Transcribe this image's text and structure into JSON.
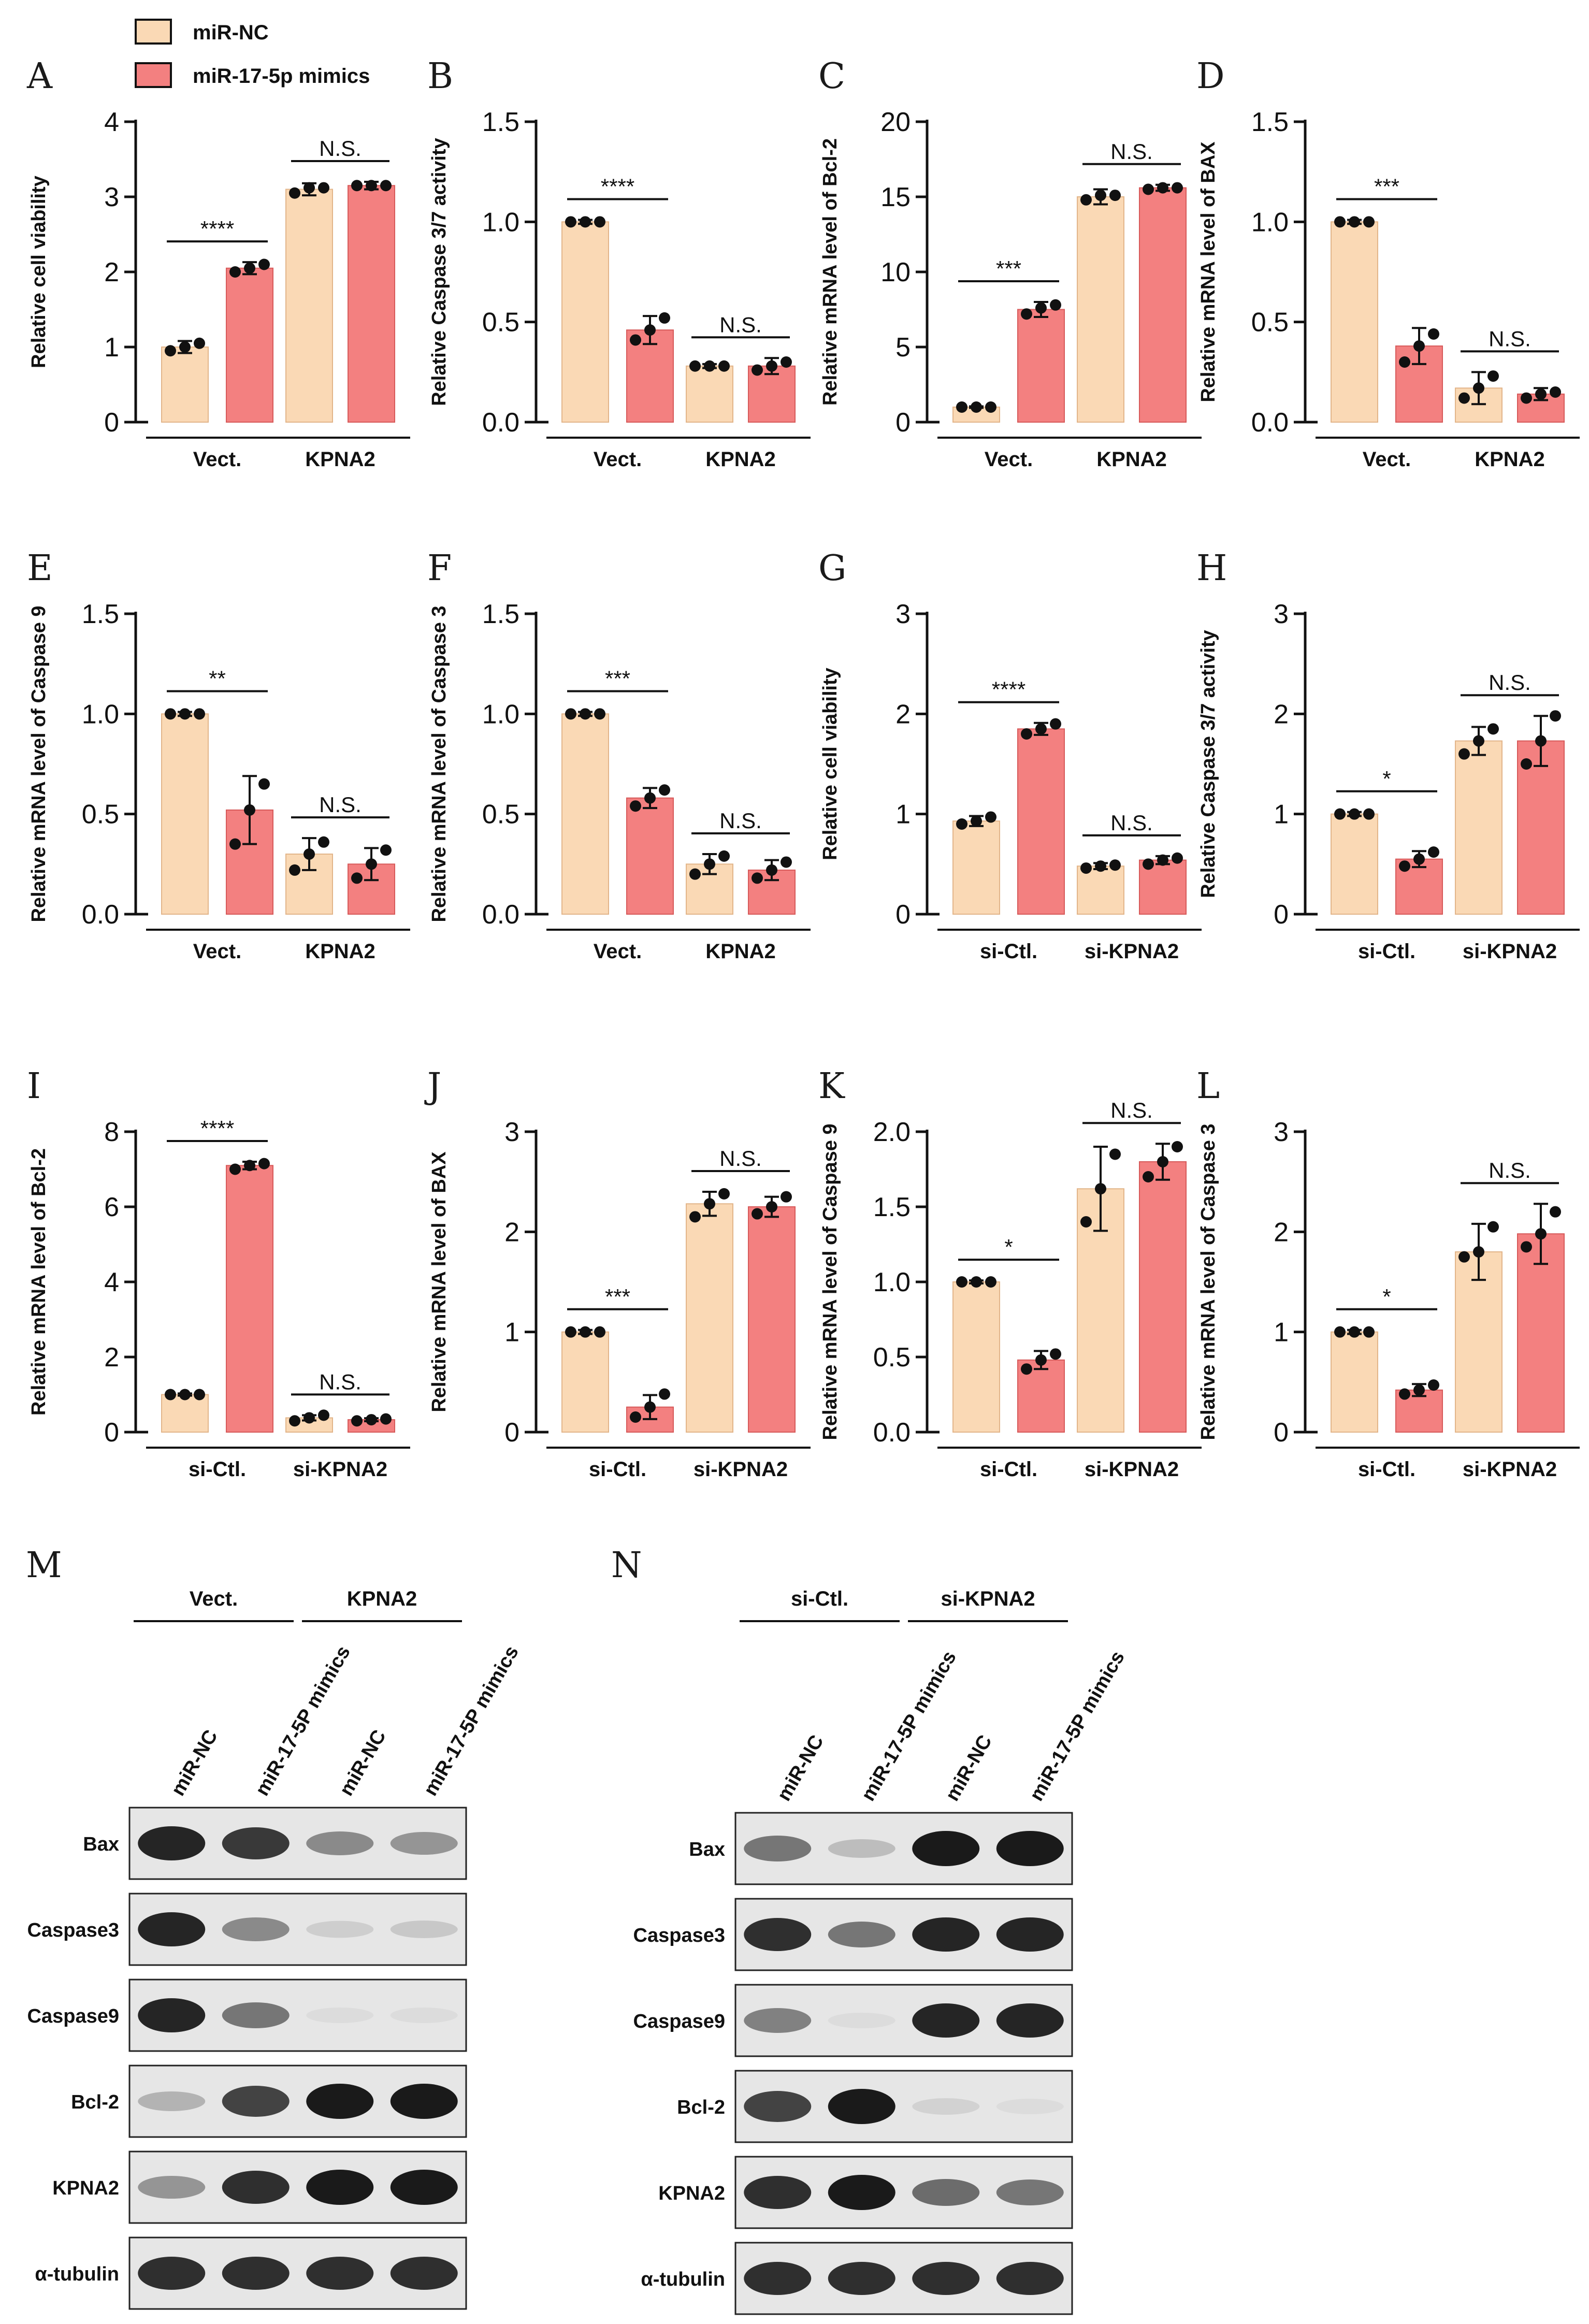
{
  "legend": [
    {
      "label": "miR-NC",
      "color": "#fad9b5"
    },
    {
      "label": "miR-17-5p mimics",
      "color": "#f38080"
    }
  ],
  "colors": {
    "nc": "#fad9b5",
    "nc_stroke": "#e2b58a",
    "mim": "#f38080",
    "mim_stroke": "#d75a5a",
    "axis": "#111111",
    "blot_bg": "#e6e6e6"
  },
  "chart_data": [
    {
      "id": "A",
      "type": "bar",
      "ylabel": "Relative cell viability",
      "ylim": [
        0,
        4
      ],
      "yticks": [
        "0",
        "1",
        "2",
        "3",
        "4"
      ],
      "groups": [
        "Vect.",
        "KPNA2"
      ],
      "series": [
        {
          "name": "miR-NC",
          "values": [
            1.0,
            3.1
          ],
          "points": [
            [
              0.95,
              1.0,
              1.05
            ],
            [
              3.05,
              3.12,
              3.12
            ]
          ],
          "sd": [
            0.08,
            0.08
          ]
        },
        {
          "name": "miR-17-5p mimics",
          "values": [
            2.05,
            3.15
          ],
          "points": [
            [
              2.0,
              2.05,
              2.1
            ],
            [
              3.15,
              3.15,
              3.15
            ]
          ],
          "sd": [
            0.08,
            0.05
          ]
        }
      ],
      "sig": [
        "****",
        "N.S."
      ]
    },
    {
      "id": "B",
      "type": "bar",
      "ylabel": "Relative Caspase 3/7 activity",
      "ylim": [
        0,
        1.5
      ],
      "yticks": [
        "0.0",
        "0.5",
        "1.0",
        "1.5"
      ],
      "groups": [
        "Vect.",
        "KPNA2"
      ],
      "series": [
        {
          "name": "miR-NC",
          "values": [
            1.0,
            0.28
          ],
          "points": [
            [
              1.0,
              1.0,
              1.0
            ],
            [
              0.28,
              0.28,
              0.28
            ]
          ],
          "sd": [
            0.01,
            0.01
          ]
        },
        {
          "name": "miR-17-5p mimics",
          "values": [
            0.46,
            0.28
          ],
          "points": [
            [
              0.41,
              0.46,
              0.52
            ],
            [
              0.26,
              0.28,
              0.3
            ]
          ],
          "sd": [
            0.07,
            0.04
          ]
        }
      ],
      "sig": [
        "****",
        "N.S."
      ]
    },
    {
      "id": "C",
      "type": "bar",
      "ylabel": "Relative mRNA level of Bcl-2",
      "ylim": [
        0,
        20
      ],
      "yticks": [
        "0",
        "5",
        "10",
        "15",
        "20"
      ],
      "groups": [
        "Vect.",
        "KPNA2"
      ],
      "series": [
        {
          "name": "miR-NC",
          "values": [
            1.0,
            15.0
          ],
          "points": [
            [
              1.0,
              1.0,
              1.0
            ],
            [
              14.8,
              15.1,
              15.1
            ]
          ],
          "sd": [
            0.05,
            0.5
          ]
        },
        {
          "name": "miR-17-5p mimics",
          "values": [
            7.5,
            15.6
          ],
          "points": [
            [
              7.2,
              7.6,
              7.8
            ],
            [
              15.5,
              15.6,
              15.6
            ]
          ],
          "sd": [
            0.5,
            0.2
          ]
        }
      ],
      "sig": [
        "***",
        "N.S."
      ]
    },
    {
      "id": "D",
      "type": "bar",
      "ylabel": "Relative mRNA level of BAX",
      "ylim": [
        0,
        1.5
      ],
      "yticks": [
        "0.0",
        "0.5",
        "1.0",
        "1.5"
      ],
      "groups": [
        "Vect.",
        "KPNA2"
      ],
      "series": [
        {
          "name": "miR-NC",
          "values": [
            1.0,
            0.17
          ],
          "points": [
            [
              1.0,
              1.0,
              1.0
            ],
            [
              0.12,
              0.17,
              0.23
            ]
          ],
          "sd": [
            0.01,
            0.08
          ]
        },
        {
          "name": "miR-17-5p mimics",
          "values": [
            0.38,
            0.14
          ],
          "points": [
            [
              0.3,
              0.38,
              0.44
            ],
            [
              0.12,
              0.14,
              0.15
            ]
          ],
          "sd": [
            0.09,
            0.03
          ]
        }
      ],
      "sig": [
        "***",
        "N.S."
      ]
    },
    {
      "id": "E",
      "type": "bar",
      "ylabel": "Relative mRNA level of Caspase 9",
      "ylim": [
        0,
        1.5
      ],
      "yticks": [
        "0.0",
        "0.5",
        "1.0",
        "1.5"
      ],
      "groups": [
        "Vect.",
        "KPNA2"
      ],
      "series": [
        {
          "name": "miR-NC",
          "values": [
            1.0,
            0.3
          ],
          "points": [
            [
              1.0,
              1.0,
              1.0
            ],
            [
              0.22,
              0.3,
              0.36
            ]
          ],
          "sd": [
            0.01,
            0.08
          ]
        },
        {
          "name": "miR-17-5p mimics",
          "values": [
            0.52,
            0.25
          ],
          "points": [
            [
              0.35,
              0.52,
              0.65
            ],
            [
              0.18,
              0.25,
              0.32
            ]
          ],
          "sd": [
            0.17,
            0.08
          ]
        }
      ],
      "sig": [
        "**",
        "N.S."
      ]
    },
    {
      "id": "F",
      "type": "bar",
      "ylabel": "Relative mRNA level of Caspase 3",
      "ylim": [
        0,
        1.5
      ],
      "yticks": [
        "0.0",
        "0.5",
        "1.0",
        "1.5"
      ],
      "groups": [
        "Vect.",
        "KPNA2"
      ],
      "series": [
        {
          "name": "miR-NC",
          "values": [
            1.0,
            0.25
          ],
          "points": [
            [
              1.0,
              1.0,
              1.0
            ],
            [
              0.2,
              0.25,
              0.29
            ]
          ],
          "sd": [
            0.01,
            0.05
          ]
        },
        {
          "name": "miR-17-5p mimics",
          "values": [
            0.58,
            0.22
          ],
          "points": [
            [
              0.54,
              0.58,
              0.62
            ],
            [
              0.18,
              0.22,
              0.26
            ]
          ],
          "sd": [
            0.05,
            0.05
          ]
        }
      ],
      "sig": [
        "***",
        "N.S."
      ]
    },
    {
      "id": "G",
      "type": "bar",
      "ylabel": "Relative cell viability",
      "ylim": [
        0,
        3
      ],
      "yticks": [
        "0",
        "1",
        "2",
        "3"
      ],
      "groups": [
        "si-Ctl.",
        "si-KPNA2"
      ],
      "series": [
        {
          "name": "miR-NC",
          "values": [
            0.93,
            0.48
          ],
          "points": [
            [
              0.9,
              0.93,
              0.97
            ],
            [
              0.46,
              0.48,
              0.49
            ]
          ],
          "sd": [
            0.05,
            0.03
          ]
        },
        {
          "name": "miR-17-5p mimics",
          "values": [
            1.85,
            0.54
          ],
          "points": [
            [
              1.8,
              1.85,
              1.9
            ],
            [
              0.5,
              0.54,
              0.56
            ]
          ],
          "sd": [
            0.06,
            0.04
          ]
        }
      ],
      "sig": [
        "****",
        "N.S."
      ]
    },
    {
      "id": "H",
      "type": "bar",
      "ylabel": "Relative Caspase 3/7 activity",
      "ylim": [
        0,
        3
      ],
      "yticks": [
        "0",
        "1",
        "2",
        "3"
      ],
      "groups": [
        "si-Ctl.",
        "si-KPNA2"
      ],
      "series": [
        {
          "name": "miR-NC",
          "values": [
            1.0,
            1.73
          ],
          "points": [
            [
              1.0,
              1.0,
              1.0
            ],
            [
              1.6,
              1.73,
              1.85
            ]
          ],
          "sd": [
            0.02,
            0.14
          ]
        },
        {
          "name": "miR-17-5p mimics",
          "values": [
            0.55,
            1.73
          ],
          "points": [
            [
              0.48,
              0.55,
              0.62
            ],
            [
              1.5,
              1.73,
              1.98
            ]
          ],
          "sd": [
            0.08,
            0.25
          ]
        }
      ],
      "sig": [
        "*",
        "N.S."
      ]
    },
    {
      "id": "I",
      "type": "bar",
      "ylabel": "Relative mRNA level of Bcl-2",
      "ylim": [
        0,
        8
      ],
      "yticks": [
        "0",
        "2",
        "4",
        "6",
        "8"
      ],
      "groups": [
        "si-Ctl.",
        "si-KPNA2"
      ],
      "series": [
        {
          "name": "miR-NC",
          "values": [
            1.0,
            0.38
          ],
          "points": [
            [
              1.0,
              1.0,
              1.0
            ],
            [
              0.3,
              0.38,
              0.45
            ]
          ],
          "sd": [
            0.03,
            0.07
          ]
        },
        {
          "name": "miR-17-5p mimics",
          "values": [
            7.1,
            0.33
          ],
          "points": [
            [
              7.0,
              7.1,
              7.15
            ],
            [
              0.3,
              0.33,
              0.35
            ]
          ],
          "sd": [
            0.1,
            0.04
          ]
        }
      ],
      "sig": [
        "****",
        "N.S."
      ]
    },
    {
      "id": "J",
      "type": "bar",
      "ylabel": "Relative mRNA level of BAX",
      "ylim": [
        0,
        3
      ],
      "yticks": [
        "0",
        "1",
        "2",
        "3"
      ],
      "groups": [
        "si-Ctl.",
        "si-KPNA2"
      ],
      "series": [
        {
          "name": "miR-NC",
          "values": [
            1.0,
            2.28
          ],
          "points": [
            [
              1.0,
              1.0,
              1.0
            ],
            [
              2.15,
              2.28,
              2.38
            ]
          ],
          "sd": [
            0.02,
            0.12
          ]
        },
        {
          "name": "miR-17-5p mimics",
          "values": [
            0.25,
            2.25
          ],
          "points": [
            [
              0.15,
              0.25,
              0.38
            ],
            [
              2.18,
              2.25,
              2.35
            ]
          ],
          "sd": [
            0.12,
            0.1
          ]
        }
      ],
      "sig": [
        "***",
        "N.S."
      ]
    },
    {
      "id": "K",
      "type": "bar",
      "ylabel": "Relative mRNA level of Caspase 9",
      "ylim": [
        0,
        2.0
      ],
      "yticks": [
        "0.0",
        "0.5",
        "1.0",
        "1.5",
        "2.0"
      ],
      "groups": [
        "si-Ctl.",
        "si-KPNA2"
      ],
      "series": [
        {
          "name": "miR-NC",
          "values": [
            1.0,
            1.62
          ],
          "points": [
            [
              1.0,
              1.0,
              1.0
            ],
            [
              1.4,
              1.62,
              1.85
            ]
          ],
          "sd": [
            0.01,
            0.28
          ]
        },
        {
          "name": "miR-17-5p mimics",
          "values": [
            0.48,
            1.8
          ],
          "points": [
            [
              0.42,
              0.48,
              0.52
            ],
            [
              1.7,
              1.8,
              1.9
            ]
          ],
          "sd": [
            0.06,
            0.12
          ]
        }
      ],
      "sig": [
        "*",
        "N.S."
      ]
    },
    {
      "id": "L",
      "type": "bar",
      "ylabel": "Relative mRNA level of Caspase 3",
      "ylim": [
        0,
        3
      ],
      "yticks": [
        "0",
        "1",
        "2",
        "3"
      ],
      "groups": [
        "si-Ctl.",
        "si-KPNA2"
      ],
      "series": [
        {
          "name": "miR-NC",
          "values": [
            1.0,
            1.8
          ],
          "points": [
            [
              1.0,
              1.0,
              1.0
            ],
            [
              1.75,
              1.8,
              2.05
            ]
          ],
          "sd": [
            0.02,
            0.28
          ]
        },
        {
          "name": "miR-17-5p mimics",
          "values": [
            0.42,
            1.98
          ],
          "points": [
            [
              0.38,
              0.42,
              0.47
            ],
            [
              1.85,
              1.98,
              2.2
            ]
          ],
          "sd": [
            0.06,
            0.3
          ]
        }
      ],
      "sig": [
        "*",
        "N.S."
      ]
    }
  ],
  "blots": [
    {
      "id": "M",
      "groups": [
        "Vect.",
        "KPNA2"
      ],
      "lanes": [
        "miR-NC",
        "miR-17-5P mimics",
        "miR-NC",
        "miR-17-5P mimics"
      ],
      "rows": [
        {
          "label": "Bax",
          "intensity": [
            0.95,
            0.85,
            0.45,
            0.4
          ]
        },
        {
          "label": "Caspase3",
          "intensity": [
            0.95,
            0.45,
            0.12,
            0.15
          ]
        },
        {
          "label": "Caspase9",
          "intensity": [
            0.95,
            0.55,
            0.05,
            0.05
          ]
        },
        {
          "label": "Bcl-2",
          "intensity": [
            0.25,
            0.8,
            1.0,
            1.0
          ]
        },
        {
          "label": "KPNA2",
          "intensity": [
            0.4,
            0.9,
            1.0,
            1.0
          ]
        },
        {
          "label": "α-tubulin",
          "intensity": [
            0.9,
            0.9,
            0.9,
            0.9
          ]
        }
      ]
    },
    {
      "id": "N",
      "groups": [
        "si-Ctl.",
        "si-KPNA2"
      ],
      "lanes": [
        "miR-NC",
        "miR-17-5P mimics",
        "miR-NC",
        "miR-17-5P mimics"
      ],
      "rows": [
        {
          "label": "Bax",
          "intensity": [
            0.55,
            0.2,
            1.0,
            1.0
          ]
        },
        {
          "label": "Caspase3",
          "intensity": [
            0.9,
            0.55,
            0.95,
            0.95
          ]
        },
        {
          "label": "Caspase9",
          "intensity": [
            0.5,
            0.05,
            0.95,
            0.95
          ]
        },
        {
          "label": "Bcl-2",
          "intensity": [
            0.8,
            1.0,
            0.1,
            0.05
          ]
        },
        {
          "label": "KPNA2",
          "intensity": [
            0.9,
            1.0,
            0.6,
            0.55
          ]
        },
        {
          "label": "α-tubulin",
          "intensity": [
            0.9,
            0.9,
            0.9,
            0.9
          ]
        }
      ]
    }
  ]
}
